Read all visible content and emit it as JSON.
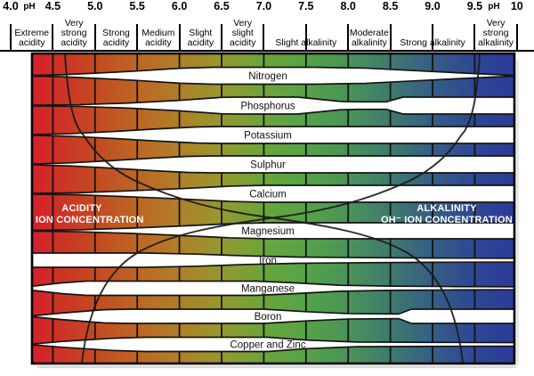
{
  "header": {
    "unit_label": "pH",
    "ticks": [
      "4.0",
      "4.5",
      "5.0",
      "5.5",
      "6.0",
      "6.5",
      "7.0",
      "7.5",
      "8.0",
      "8.5",
      "9.0",
      "9.5",
      "10"
    ],
    "categories": [
      {
        "label": "Extreme acidity",
        "from": 4.0,
        "to": 4.5
      },
      {
        "label": "Very strong acidity",
        "from": 4.5,
        "to": 5.0
      },
      {
        "label": "Strong acidity",
        "from": 5.0,
        "to": 5.5
      },
      {
        "label": "Medium acidity",
        "from": 5.5,
        "to": 6.0
      },
      {
        "label": "Slight acidity",
        "from": 6.0,
        "to": 6.5
      },
      {
        "label": "Very slight acidity",
        "from": 6.5,
        "to": 7.0
      },
      {
        "label": "Slight alkalinity",
        "from": 7.0,
        "to": 8.0
      },
      {
        "label": "Moderate alkalinity",
        "from": 8.0,
        "to": 8.5
      },
      {
        "label": "Strong alkalinity",
        "from": 8.5,
        "to": 9.5
      },
      {
        "label": "Very strong alkalinity",
        "from": 9.5,
        "to": 10.0
      }
    ]
  },
  "overlay": {
    "acidity": [
      "ACIDITY",
      "H⁺ ION CONCENTRATION"
    ],
    "alkalinity": [
      "ALKALINITY",
      "OH⁻ ION CONCENTRATION"
    ]
  },
  "chart_data": {
    "type": "area",
    "title": "",
    "x_axis": {
      "label": "pH",
      "min": 4.0,
      "max": 10.0,
      "tick_step": 0.5
    },
    "y_encoding": "band-thickness",
    "value_scale": {
      "min": 0,
      "max": 1
    },
    "series": [
      {
        "name": "Nitrogen",
        "points": [
          [
            4.25,
            0.04
          ],
          [
            4.6,
            0.12
          ],
          [
            5.0,
            0.3
          ],
          [
            5.5,
            0.56
          ],
          [
            6.0,
            0.88
          ],
          [
            6.4,
            1
          ],
          [
            7.6,
            1
          ],
          [
            8.2,
            0.9
          ],
          [
            8.8,
            0.6
          ],
          [
            9.4,
            0.3
          ],
          [
            9.8,
            0.12
          ],
          [
            10,
            0.04
          ]
        ]
      },
      {
        "name": "Phosphorus",
        "points": [
          [
            4.25,
            0.04
          ],
          [
            4.8,
            0.1
          ],
          [
            5.4,
            0.3
          ],
          [
            6.0,
            0.62
          ],
          [
            6.5,
            0.97
          ],
          [
            6.7,
            1
          ],
          [
            7.4,
            1
          ],
          [
            7.9,
            0.5
          ],
          [
            8.1,
            0.44
          ],
          [
            8.45,
            0.44
          ],
          [
            8.65,
            1
          ],
          [
            10,
            1
          ]
        ]
      },
      {
        "name": "Potassium",
        "points": [
          [
            4.25,
            0.04
          ],
          [
            4.7,
            0.15
          ],
          [
            5.2,
            0.4
          ],
          [
            5.7,
            0.7
          ],
          [
            6.2,
            0.95
          ],
          [
            6.5,
            1
          ],
          [
            10,
            1
          ]
        ]
      },
      {
        "name": "Sulphur",
        "points": [
          [
            4.25,
            0.04
          ],
          [
            4.7,
            0.18
          ],
          [
            5.2,
            0.45
          ],
          [
            5.7,
            0.75
          ],
          [
            6.1,
            0.95
          ],
          [
            6.4,
            1
          ],
          [
            10,
            1
          ]
        ]
      },
      {
        "name": "Calcium",
        "points": [
          [
            4.25,
            0.04
          ],
          [
            4.8,
            0.12
          ],
          [
            5.4,
            0.35
          ],
          [
            6.0,
            0.6
          ],
          [
            6.6,
            0.9
          ],
          [
            7.0,
            1
          ],
          [
            10,
            1
          ]
        ]
      },
      {
        "name": "Magnesium",
        "points": [
          [
            4.25,
            0.04
          ],
          [
            4.8,
            0.12
          ],
          [
            5.4,
            0.32
          ],
          [
            6.0,
            0.58
          ],
          [
            6.6,
            0.88
          ],
          [
            7.05,
            1
          ],
          [
            10,
            1
          ]
        ]
      },
      {
        "name": "Iron",
        "points": [
          [
            4.25,
            1
          ],
          [
            5.6,
            1
          ],
          [
            6.2,
            0.85
          ],
          [
            6.8,
            0.6
          ],
          [
            7.4,
            0.44
          ],
          [
            8.2,
            0.35
          ],
          [
            9.0,
            0.3
          ],
          [
            10,
            0.26
          ]
        ]
      },
      {
        "name": "Manganese",
        "points": [
          [
            4.25,
            0.28
          ],
          [
            4.6,
            0.75
          ],
          [
            4.9,
            1
          ],
          [
            6.9,
            1
          ],
          [
            7.3,
            0.8
          ],
          [
            7.9,
            0.42
          ],
          [
            8.5,
            0.3
          ],
          [
            9.2,
            0.24
          ],
          [
            10,
            0.2
          ]
        ]
      },
      {
        "name": "Boron",
        "points": [
          [
            4.25,
            0.06
          ],
          [
            4.6,
            0.45
          ],
          [
            5.1,
            0.92
          ],
          [
            5.4,
            1
          ],
          [
            7.0,
            1
          ],
          [
            7.5,
            0.65
          ],
          [
            8.0,
            0.38
          ],
          [
            8.6,
            0.33
          ],
          [
            8.75,
            1
          ],
          [
            10,
            1
          ]
        ]
      },
      {
        "name": "Copper and Zinc",
        "points": [
          [
            4.25,
            0.05
          ],
          [
            4.6,
            0.4
          ],
          [
            5.2,
            0.85
          ],
          [
            5.6,
            1
          ],
          [
            7.05,
            1
          ],
          [
            7.5,
            0.6
          ],
          [
            8.1,
            0.33
          ],
          [
            9.0,
            0.28
          ],
          [
            10,
            0.25
          ]
        ]
      }
    ]
  },
  "colors": {
    "gradient": [
      {
        "ph": 4.25,
        "hex": "#d6202a"
      },
      {
        "ph": 4.5,
        "hex": "#cf2d26"
      },
      {
        "ph": 5.0,
        "hex": "#c34a22"
      },
      {
        "ph": 5.5,
        "hex": "#bd6624"
      },
      {
        "ph": 6.0,
        "hex": "#b07f28"
      },
      {
        "ph": 6.5,
        "hex": "#95982f"
      },
      {
        "ph": 7.0,
        "hex": "#6aa53a"
      },
      {
        "ph": 7.5,
        "hex": "#55a348"
      },
      {
        "ph": 8.0,
        "hex": "#4a9358"
      },
      {
        "ph": 8.5,
        "hex": "#3e7a6e"
      },
      {
        "ph": 9.0,
        "hex": "#355e84"
      },
      {
        "ph": 9.5,
        "hex": "#2e4794"
      },
      {
        "ph": 10.0,
        "hex": "#2b3b98"
      }
    ],
    "band_fill": "#ffffff",
    "grid_line": "#141414",
    "curve": "#1a1a1a",
    "overlay_text": "#ffffff",
    "label_text": "#111111"
  }
}
